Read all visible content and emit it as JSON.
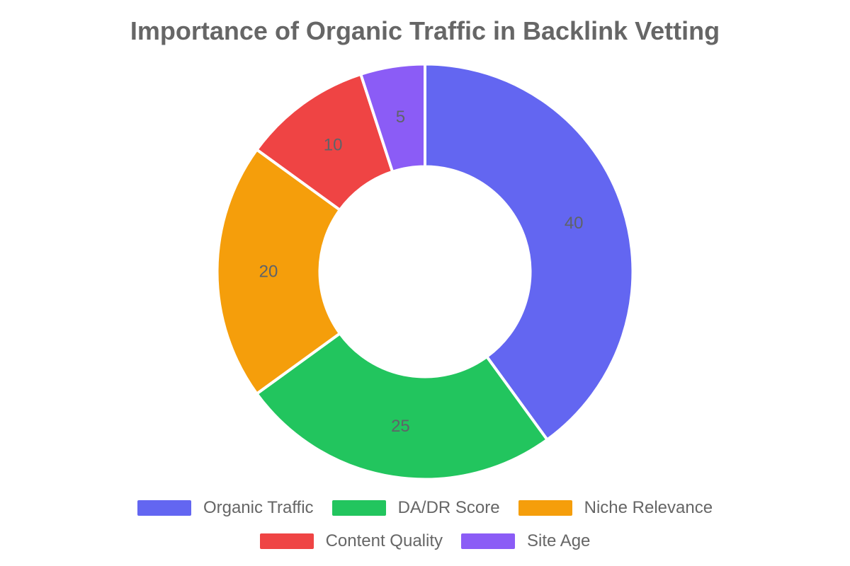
{
  "title": "Importance of Organic Traffic in Backlink Vetting",
  "style": {
    "background": "#ffffff",
    "title_color": "#666666",
    "legend_text_color": "#666666",
    "slice_label_color": "#5f6368",
    "separator_color": "#ffffff"
  },
  "chart_data": {
    "type": "pie",
    "subtype": "donut",
    "title": "Importance of Organic Traffic in Backlink Vetting",
    "categories": [
      "Organic Traffic",
      "DA/DR Score",
      "Niche Relevance",
      "Content Quality",
      "Site Age"
    ],
    "values": [
      40,
      25,
      20,
      10,
      5
    ],
    "colors": [
      "#6366f1",
      "#22c55e",
      "#f59e0b",
      "#ef4444",
      "#8b5cf6"
    ],
    "hole_ratio": 0.51,
    "start_angle": "top (12 o'clock)",
    "direction": "clockwise",
    "data_labels": "values shown inside slices",
    "legend_position": "bottom",
    "legend_rows": [
      3,
      2
    ]
  }
}
